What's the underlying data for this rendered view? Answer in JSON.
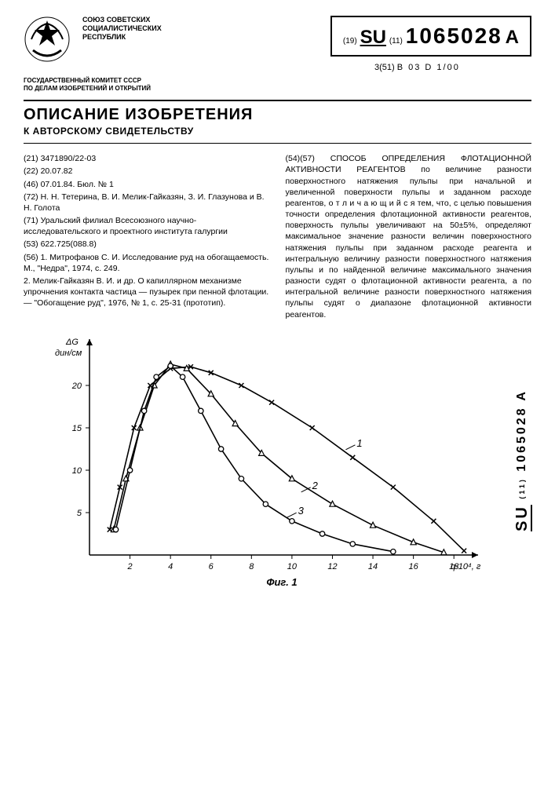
{
  "header": {
    "union1": "СОЮЗ СОВЕТСКИХ",
    "union2": "СОЦИАЛИСТИЧЕСКИХ",
    "union3": "РЕСПУБЛИК",
    "committee1": "ГОСУДАРСТВЕННЫЙ КОМИТЕТ СССР",
    "committee2": "ПО ДЕЛАМ ИЗОБРЕТЕНИЙ И ОТКРЫТИЙ",
    "code_prefix_19": "(19)",
    "code_su": "SU",
    "code_prefix_11": "(11)",
    "number": "1065028",
    "suffix": "A",
    "class_prefix": "3(51)",
    "class_code": "B 03 D 1/00",
    "title_main": "ОПИСАНИЕ ИЗОБРЕТЕНИЯ",
    "title_sub": "К АВТОРСКОМУ СВИДЕТЕЛЬСТВУ"
  },
  "left": {
    "l21": "(21) 3471890/22-03",
    "l22": "(22) 20.07.82",
    "l46": "(46) 07.01.84. Бюл. № 1",
    "l72": "(72) Н. Н. Тетерина, В. И. Мелик-Гайказян, З. И. Глазунова и В. Н. Голота",
    "l71": "(71) Уральский филиал Всесоюзного научно-исследовательского и проектного института галургии",
    "l53": "(53) 622.725(088.8)",
    "l56a": "(56) 1. Митрофанов С. И. Исследование руд на обогащаемость. М., \"Недра\", 1974, с. 249.",
    "l56b": "2. Мелик-Гайказян В. И. и др. О капиллярном механизме упрочнения контакта частица — пузырек при пенной флотации. — \"Обогащение руд\", 1976, № 1, с. 25-31 (прототип)."
  },
  "right": {
    "abstract": "(54)(57) СПОСОБ ОПРЕДЕЛЕНИЯ ФЛОТАЦИОННОЙ АКТИВНОСТИ РЕАГЕНТОВ по величине разности поверхностного натяжения пульпы при начальной и увеличенной поверхности пульпы и заданном расходе реагентов, о т л и ч а ю щ и й с я тем, что, с целью повышения точности определения флотационной активности реагентов, поверхность пульпы увеличивают на 50±5%, определяют максимальное значение разности величин поверхностного натяжения пульпы при заданном расходе реагента и интегральную величину разности поверхностного натяжения пульпы и по найденной величине максимального значения разности судят о флотационной активности реагента, а по интегральной величине разности поверхностного натяжения пульпы судят о диапазоне флотационной активности реагентов."
  },
  "side": {
    "su": "SU",
    "num": "1065028 A",
    "sub": "(11)"
  },
  "chart": {
    "type": "line",
    "caption": "Фиг. 1",
    "y_label_top": "ΔG",
    "y_label_unit": "дин/см",
    "x_label": "q·10⁴, г",
    "x_ticks": [
      2,
      4,
      6,
      8,
      10,
      12,
      14,
      16,
      18
    ],
    "y_ticks": [
      5,
      10,
      15,
      20
    ],
    "xlim": [
      0,
      19
    ],
    "ylim": [
      0,
      25
    ],
    "axis_color": "#000000",
    "background": "#ffffff",
    "label_fontsize": 11,
    "series": [
      {
        "id": "1",
        "marker": "x",
        "color": "#000000",
        "line_width": 1.6,
        "points": [
          [
            1.0,
            3
          ],
          [
            1.5,
            8
          ],
          [
            2.2,
            15
          ],
          [
            3.0,
            20
          ],
          [
            4.0,
            22
          ],
          [
            5.0,
            22.2
          ],
          [
            6.0,
            21.5
          ],
          [
            7.5,
            20
          ],
          [
            9.0,
            18
          ],
          [
            11.0,
            15
          ],
          [
            13.0,
            11.5
          ],
          [
            15.0,
            8
          ],
          [
            17.0,
            4
          ],
          [
            18.5,
            0.5
          ]
        ]
      },
      {
        "id": "2",
        "marker": "triangle",
        "color": "#000000",
        "line_width": 1.6,
        "points": [
          [
            1.2,
            3
          ],
          [
            1.8,
            9
          ],
          [
            2.5,
            15
          ],
          [
            3.2,
            20
          ],
          [
            4.0,
            22.5
          ],
          [
            4.8,
            22
          ],
          [
            6.0,
            19
          ],
          [
            7.2,
            15.5
          ],
          [
            8.5,
            12
          ],
          [
            10.0,
            9
          ],
          [
            12.0,
            6
          ],
          [
            14.0,
            3.5
          ],
          [
            16.0,
            1.5
          ],
          [
            17.5,
            0.3
          ]
        ]
      },
      {
        "id": "3",
        "marker": "circle",
        "color": "#000000",
        "line_width": 1.6,
        "points": [
          [
            1.3,
            3
          ],
          [
            2.0,
            10
          ],
          [
            2.7,
            17
          ],
          [
            3.3,
            21
          ],
          [
            4.0,
            22.3
          ],
          [
            4.6,
            21
          ],
          [
            5.5,
            17
          ],
          [
            6.5,
            12.5
          ],
          [
            7.5,
            9
          ],
          [
            8.7,
            6
          ],
          [
            10.0,
            4
          ],
          [
            11.5,
            2.5
          ],
          [
            13.0,
            1.3
          ],
          [
            15.0,
            0.4
          ]
        ]
      }
    ],
    "curve_labels": [
      {
        "text": "1",
        "x": 13.2,
        "y": 12.8
      },
      {
        "text": "2",
        "x": 11.0,
        "y": 7.8
      },
      {
        "text": "3",
        "x": 10.3,
        "y": 4.8
      }
    ]
  }
}
